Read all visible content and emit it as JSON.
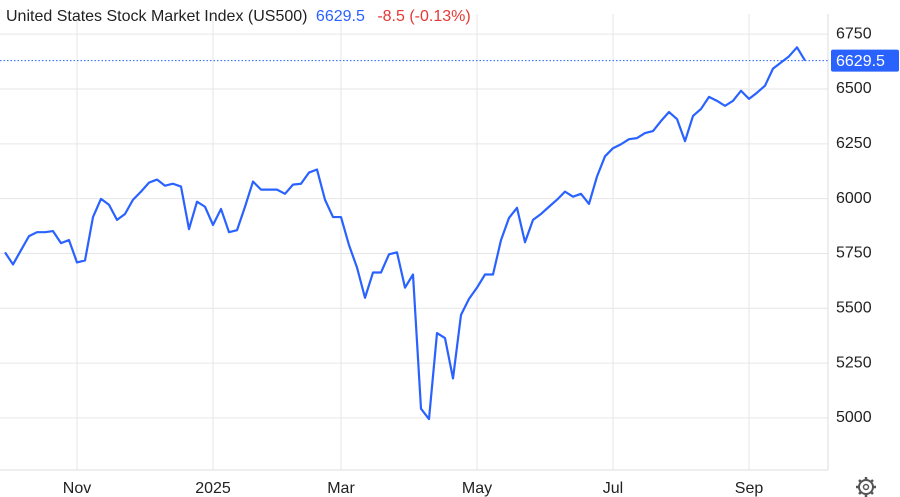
{
  "chart_data": {
    "type": "line",
    "title": "United States Stock Market Index (US500)",
    "last_price": 6629.5,
    "change": "-8.5 (-0.13%)",
    "categories": [
      null,
      null,
      null,
      null,
      null,
      null,
      null,
      null,
      null,
      "Nov",
      null,
      null,
      null,
      null,
      null,
      null,
      null,
      null,
      null,
      null,
      null,
      null,
      null,
      null,
      null,
      null,
      "2025",
      null,
      null,
      null,
      null,
      null,
      null,
      null,
      null,
      null,
      null,
      null,
      null,
      null,
      null,
      null,
      "Mar",
      null,
      null,
      null,
      null,
      null,
      null,
      null,
      null,
      null,
      null,
      null,
      null,
      null,
      null,
      null,
      null,
      "May",
      null,
      null,
      null,
      null,
      null,
      null,
      null,
      null,
      null,
      null,
      null,
      null,
      null,
      null,
      null,
      null,
      "Jul",
      null,
      null,
      null,
      null,
      null,
      null,
      null,
      null,
      null,
      null,
      null,
      null,
      null,
      null,
      null,
      null,
      "Sep",
      null,
      null,
      null,
      null,
      null,
      null,
      null
    ],
    "series": [
      {
        "name": "US500",
        "color": "#2962ff",
        "values": [
          5755,
          5700,
          5765,
          5829,
          5847,
          5847,
          5852,
          5797,
          5811,
          5709,
          5718,
          5916,
          5999,
          5972,
          5903,
          5930,
          5995,
          6032,
          6073,
          6087,
          6059,
          6068,
          6055,
          5861,
          5986,
          5963,
          5880,
          5953,
          5847,
          5856,
          5963,
          6078,
          6041,
          6041,
          6041,
          6022,
          6064,
          6068,
          6119,
          6133,
          5995,
          5916,
          5916,
          5788,
          5686,
          5548,
          5663,
          5663,
          5746,
          5755,
          5594,
          5654,
          5042,
          4995,
          5387,
          5364,
          5180,
          5470,
          5543,
          5594,
          5654,
          5654,
          5811,
          5912,
          5958,
          5801,
          5903,
          5930,
          5963,
          5995,
          6032,
          6009,
          6022,
          5976,
          6101,
          6193,
          6230,
          6248,
          6271,
          6276,
          6299,
          6308,
          6354,
          6395,
          6363,
          6262,
          6377,
          6409,
          6464,
          6446,
          6423,
          6446,
          6492,
          6455,
          6483,
          6515,
          6593,
          6621,
          6649,
          6690,
          6629.5
        ]
      }
    ],
    "ylim": [
      4762.5,
      6842
    ],
    "yticks": [
      5000,
      5250,
      5500,
      5750,
      6000,
      6250,
      6500,
      6750
    ],
    "grid": true
  }
}
